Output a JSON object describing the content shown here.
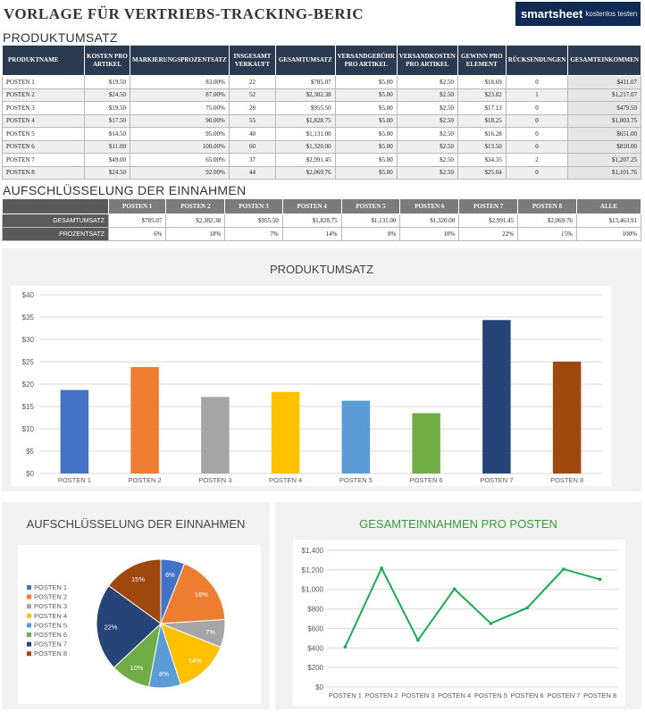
{
  "header": {
    "title": "VORLAGE FÜR VERTRIEBS-TRACKING-BERIC",
    "brand_logo": "smartsheet",
    "brand_cta": "kostenlos testen"
  },
  "sections": {
    "produktumsatz": "PRODUKTUMSATZ",
    "einnahmen": "AUFSCHLÜSSELUNG DER EINNAHMEN"
  },
  "table1": {
    "headers": [
      "PRODUKTNAME",
      "KOSTEN PRO ARTIKEL",
      "MARKIERUNGSPROZENTSATZ",
      "INSGESAMT VERKAUFT",
      "GESAMTUMSATZ",
      "VERSANDGEBÜHR PRO ARTIKEL",
      "VERSANDKOSTEN PRO ARTIKEL",
      "GEWINN PRO ELEMENT",
      "RÜCKSENDUNGEN",
      "GESAMTEINKOMMEN"
    ],
    "rows": [
      [
        "POSTEN 1",
        "$19.50",
        "83.00%",
        "22",
        "$785.07",
        "$5.00",
        "$2.50",
        "$18.69",
        "0",
        "$411.07"
      ],
      [
        "POSTEN 2",
        "$24.50",
        "87.00%",
        "52",
        "$2,382.38",
        "$5.00",
        "$2.50",
        "$23.82",
        "1",
        "$1,217.07"
      ],
      [
        "POSTEN 3",
        "$19.50",
        "75.00%",
        "28",
        "$955.50",
        "$5.00",
        "$2.50",
        "$17.13",
        "0",
        "$479.50"
      ],
      [
        "POSTEN 4",
        "$17.50",
        "90.00%",
        "55",
        "$1,828.75",
        "$5.00",
        "$2.50",
        "$18.25",
        "0",
        "$1,003.75"
      ],
      [
        "POSTEN 5",
        "$14.50",
        "95.00%",
        "40",
        "$1,131.00",
        "$5.00",
        "$2.50",
        "$16.28",
        "0",
        "$651.00"
      ],
      [
        "POSTEN 6",
        "$11.00",
        "100.00%",
        "60",
        "$1,320.00",
        "$5.00",
        "$2.50",
        "$13.50",
        "0",
        "$810.00"
      ],
      [
        "POSTEN 7",
        "$49.00",
        "65.00%",
        "37",
        "$2,991.45",
        "$5.00",
        "$2.50",
        "$34.35",
        "2",
        "$1,207.25"
      ],
      [
        "POSTEN 8",
        "$24.50",
        "92.00%",
        "44",
        "$2,069.76",
        "$5.00",
        "$2.50",
        "$25.04",
        "0",
        "$1,101.76"
      ]
    ]
  },
  "table2": {
    "headers": [
      "POSTEN 1",
      "POSTEN 2",
      "POSTEN 3",
      "POSTEN 4",
      "POSTEN 5",
      "POSTEN 6",
      "POSTEN 7",
      "POSTEN 8",
      "ALLE"
    ],
    "rows": [
      {
        "label": "GESAMTUMSATZ",
        "values": [
          "$785.07",
          "$2,382.38",
          "$955.50",
          "$1,828.75",
          "$1,131.00",
          "$1,320.00",
          "$2,991.45",
          "$2,069.76",
          "$13,463.91"
        ]
      },
      {
        "label": "PROZENTSATZ",
        "values": [
          "6%",
          "18%",
          "7%",
          "14%",
          "8%",
          "10%",
          "22%",
          "15%",
          "100%"
        ]
      }
    ]
  },
  "chart_data": [
    {
      "type": "bar",
      "title": "PRODUKTUMSATZ",
      "categories": [
        "POSTEN 1",
        "POSTEN 2",
        "POSTEN 3",
        "POSTEN 4",
        "POSTEN 5",
        "POSTEN 6",
        "POSTEN 7",
        "POSTEN 8"
      ],
      "values": [
        18.69,
        23.82,
        17.13,
        18.25,
        16.28,
        13.5,
        34.35,
        25.04
      ],
      "colors": [
        "#4472c4",
        "#ed7d31",
        "#a5a5a5",
        "#ffc000",
        "#5b9bd5",
        "#70ad47",
        "#264478",
        "#9e480e"
      ],
      "ylim": [
        0,
        40
      ],
      "yticks": [
        "$0",
        "$5",
        "$10",
        "$15",
        "$20",
        "$25",
        "$30",
        "$35",
        "$40"
      ],
      "grid": true
    },
    {
      "type": "pie",
      "title": "AUFSCHLÜSSELUNG DER EINNAHMEN",
      "labels": [
        "POSTEN 1",
        "POSTEN 2",
        "POSTEN 3",
        "POSTEN 4",
        "POSTEN 5",
        "POSTEN 6",
        "POSTEN 7",
        "POSTEN 8"
      ],
      "values": [
        6,
        18,
        7,
        14,
        8,
        10,
        22,
        15
      ],
      "value_labels": [
        "6%",
        "18%",
        "7%",
        "14%",
        "8%",
        "10%",
        "22%",
        "15%"
      ],
      "colors": [
        "#4472c4",
        "#ed7d31",
        "#a5a5a5",
        "#ffc000",
        "#5b9bd5",
        "#70ad47",
        "#264478",
        "#9e480e"
      ],
      "legend": "left"
    },
    {
      "type": "line",
      "title": "GESAMTEINNAHMEN PRO POSTEN",
      "categories": [
        "POSTEN 1",
        "POSTEN 2",
        "POSTEN 3",
        "POSTEN 4",
        "POSTEN 5",
        "POSTEN 6",
        "POSTEN 7",
        "POSTEN 8"
      ],
      "values": [
        411.07,
        1217.07,
        479.5,
        1003.75,
        651.0,
        810.0,
        1207.25,
        1101.76
      ],
      "color": "#1aaa55",
      "title_color": "#3a9b3a",
      "ylim": [
        0,
        1400
      ],
      "yticks": [
        "$0",
        "$200",
        "$400",
        "$600",
        "$800",
        "$1,000",
        "$1,200",
        "$1,400"
      ],
      "grid": true
    }
  ]
}
